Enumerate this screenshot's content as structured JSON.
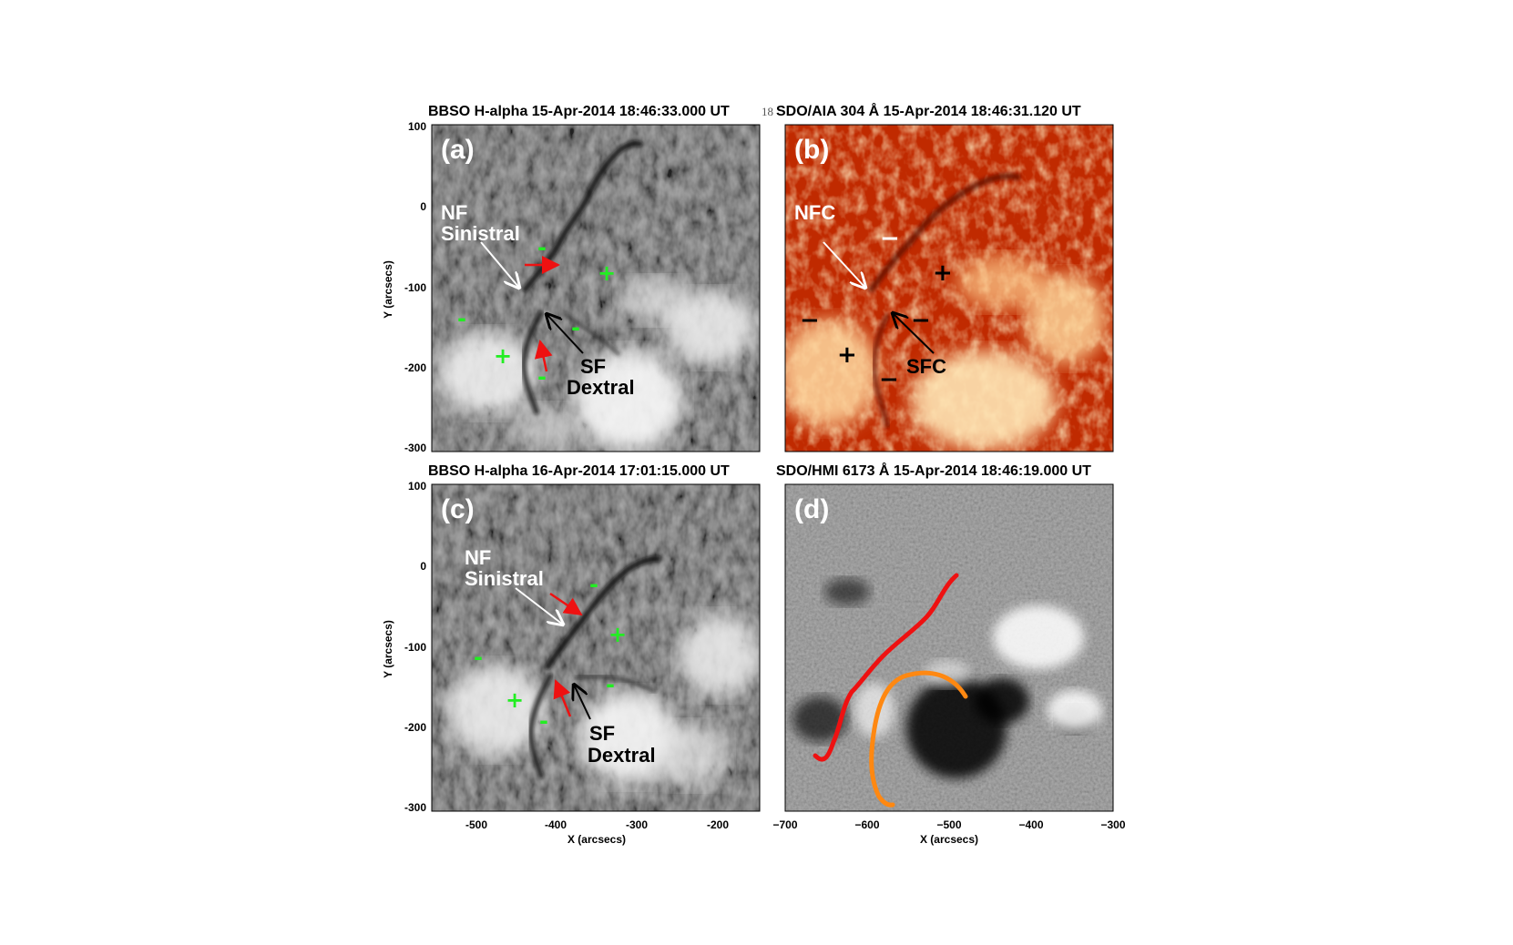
{
  "page_number": "18",
  "panels": {
    "a": {
      "title": "BBSO H-alpha 15-Apr-2014 18:46:33.000 UT",
      "label": "(a)",
      "nf_label": "NF",
      "nf_sub": "Sinistral",
      "sf_label": "SF",
      "sf_sub": "Dextral",
      "minus": "-",
      "plus": "+"
    },
    "b": {
      "title": "SDO/AIA 304 Å 15-Apr-2014 18:46:31.120 UT",
      "label": "(b)",
      "nfc_label": "NFC",
      "sfc_label": "SFC",
      "minus": "−",
      "plus": "+"
    },
    "c": {
      "title": "BBSO H-alpha 16-Apr-2014 17:01:15.000 UT",
      "label": "(c)",
      "nf_label": "NF",
      "nf_sub": "Sinistral",
      "sf_label": "SF",
      "sf_sub": "Dextral",
      "minus": "-",
      "plus": "+"
    },
    "d": {
      "title": "SDO/HMI 6173 Å 15-Apr-2014 18:46:19.000 UT",
      "label": "(d)"
    }
  },
  "axes": {
    "ylabel": "Y (arcsecs)",
    "xlabel": "X (arcsecs)",
    "y_ticks": [
      "100",
      "0",
      "-100",
      "-200",
      "-300"
    ],
    "x_ticks_left": [
      "-500",
      "-400",
      "-300",
      "-200"
    ],
    "x_ticks_right": [
      "−700",
      "−600",
      "−500",
      "−400",
      "−300"
    ]
  },
  "colors": {
    "filament_red": "#ee1111",
    "filament_orange": "#ff8811",
    "polarity_green": "#22ee22",
    "arrow_red": "#ee1111"
  }
}
